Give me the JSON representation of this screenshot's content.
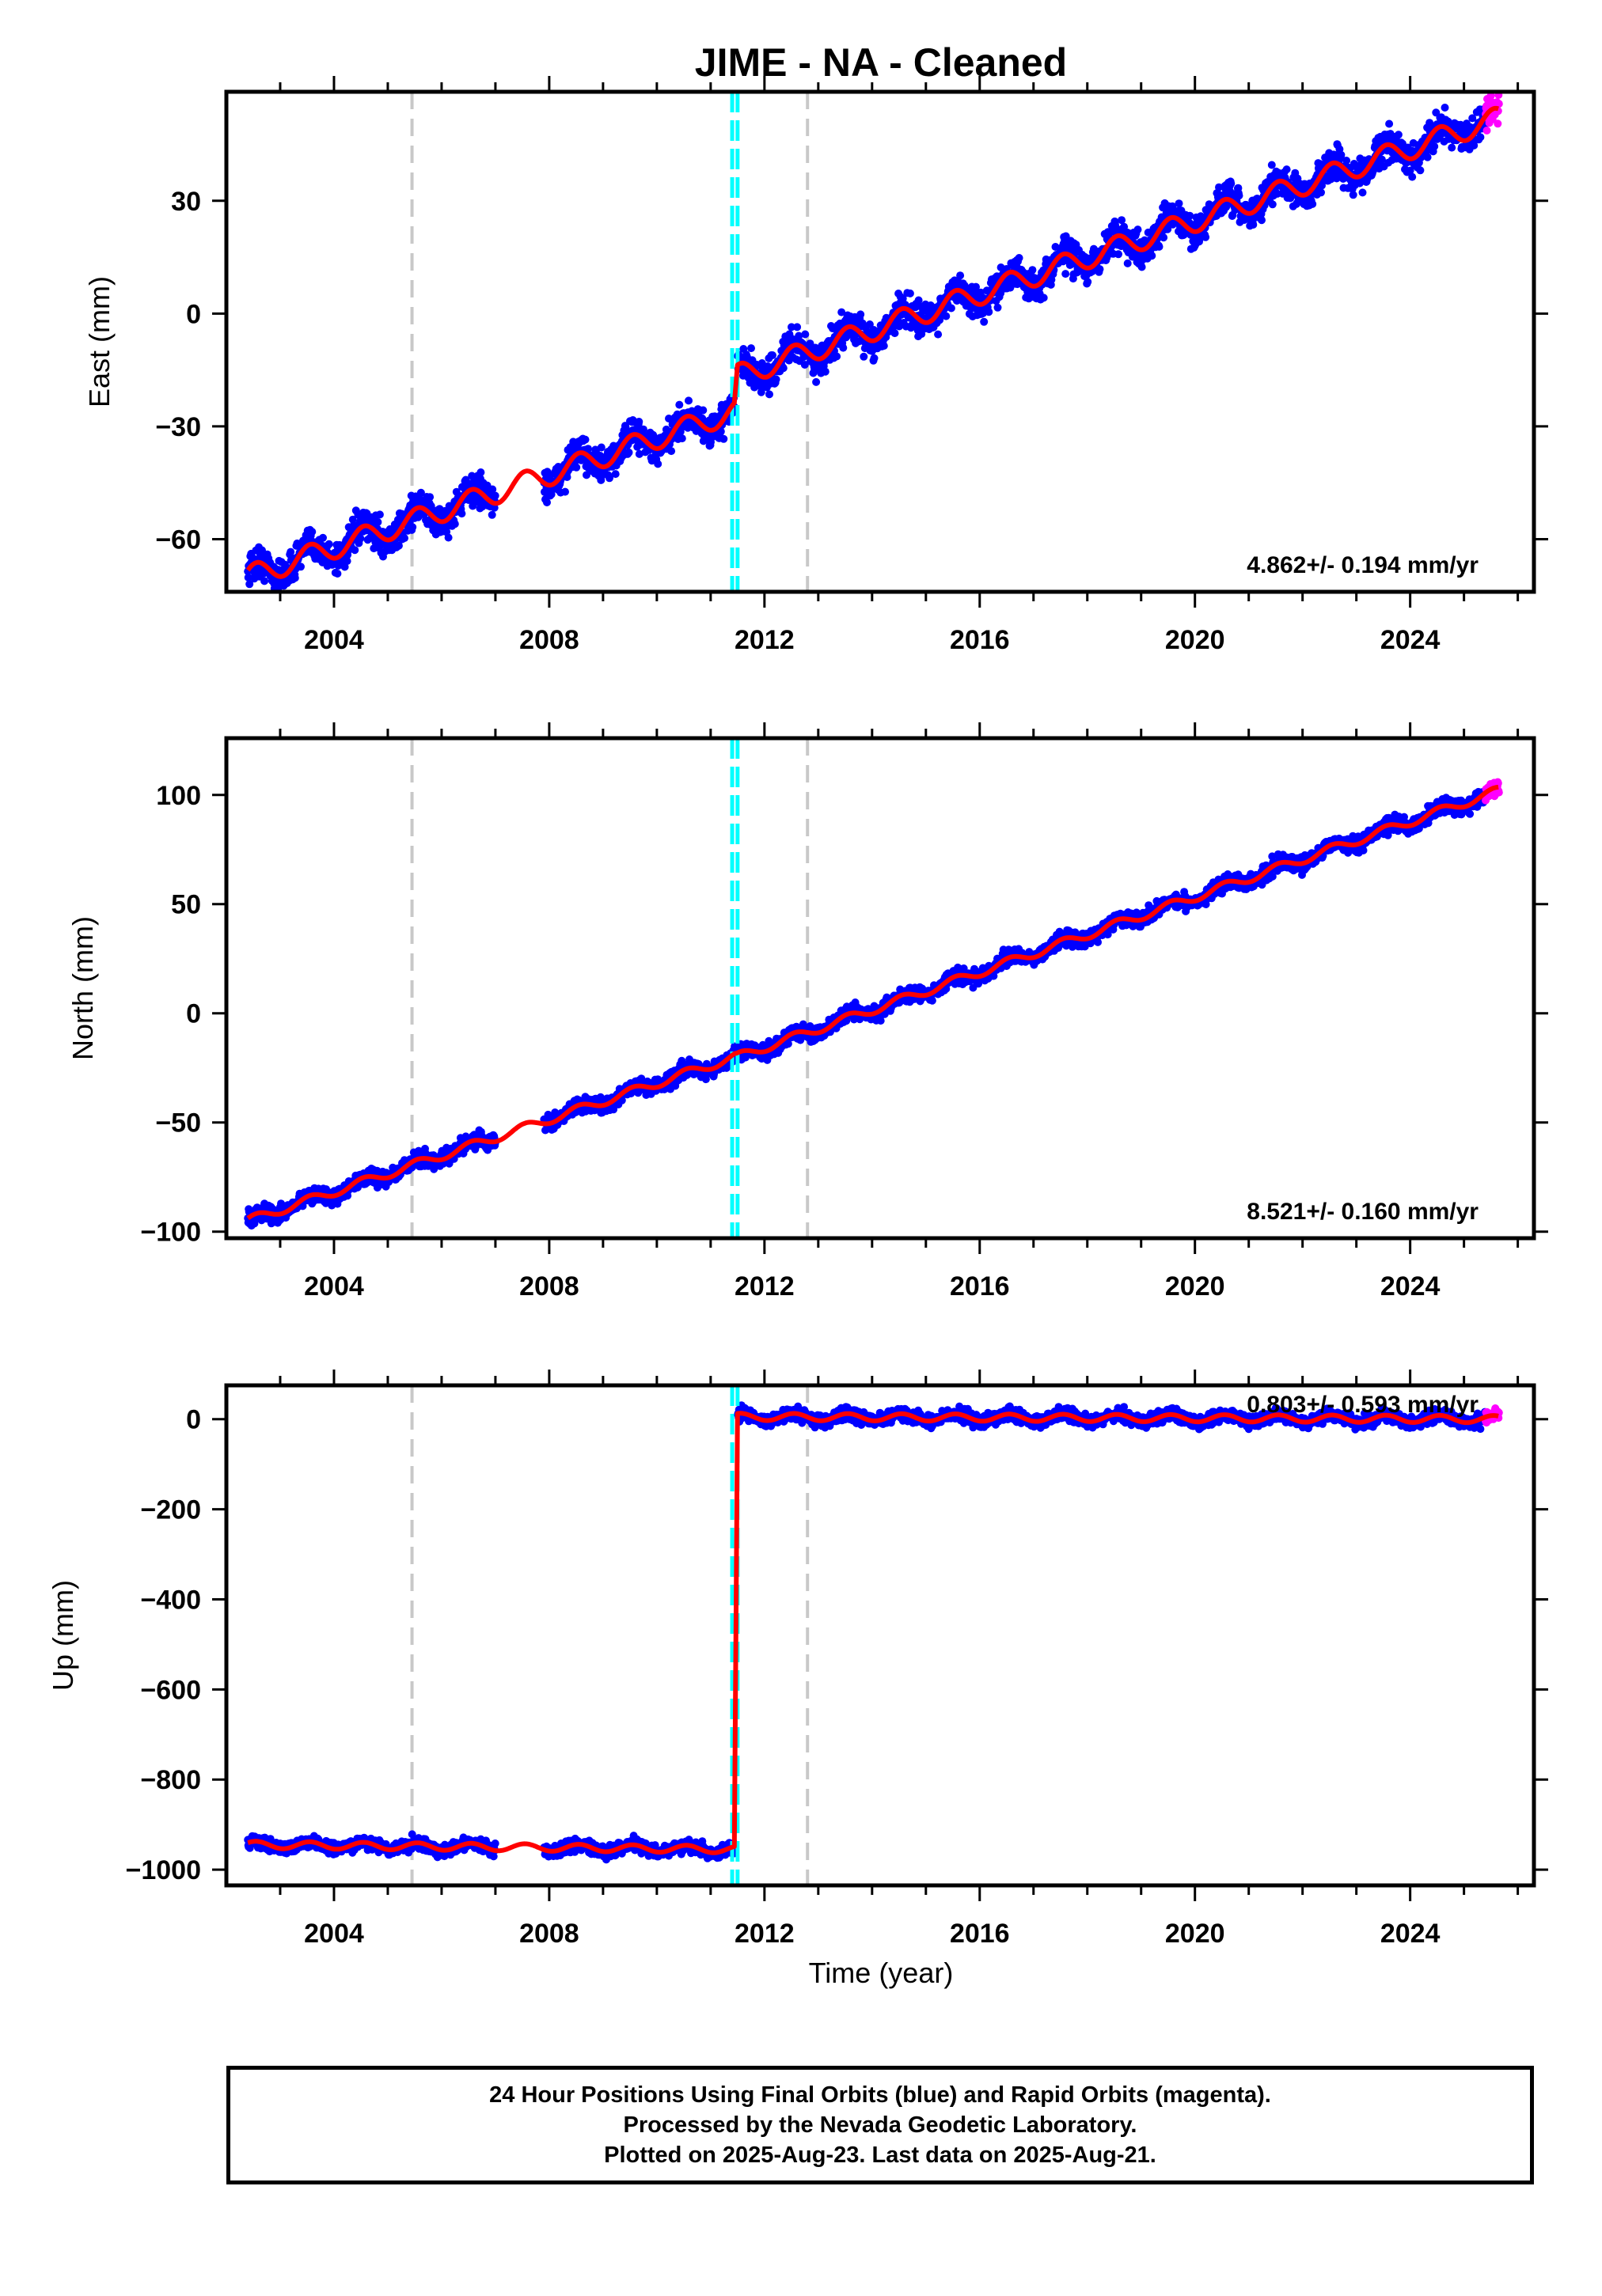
{
  "title": "JIME  - NA - Cleaned",
  "xlabel": "Time (year)",
  "footer": {
    "line1": "24 Hour Positions Using Final Orbits (blue) and Rapid Orbits (magenta).",
    "line2": "Processed by the Nevada Geodetic Laboratory.",
    "line3": "Plotted on 2025-Aug-23. Last data on 2025-Aug-21."
  },
  "colors": {
    "final_orbits": "#0000ff",
    "rapid_orbits": "#ff00ff",
    "model_fit": "#ff0000",
    "equipment_change": "#00ffff",
    "earthquake_marker": "#c8c8c8"
  },
  "chart_data": [
    {
      "type": "scatter",
      "ylabel": "East (mm)",
      "rate_label": "4.862+/- 0.194 mm/yr",
      "xlim": [
        2002.0,
        2026.3
      ],
      "ylim": [
        -74,
        59
      ],
      "xticks": [
        2004,
        2008,
        2012,
        2016,
        2020,
        2024
      ],
      "yticks": [
        -60,
        -30,
        0,
        30
      ],
      "ytick_labels": [
        "−60",
        "−30",
        "0",
        "30"
      ],
      "grey_dashed_lines": [
        2005.45,
        2012.8
      ],
      "cyan_dashed_lines": [
        2011.4,
        2011.5
      ],
      "step": {
        "at": 2011.5,
        "size": 16
      },
      "fit_segments": [
        {
          "x": [
            2002.4,
            2011.45
          ],
          "y": [
            -70.0,
            -26.0
          ]
        },
        {
          "x": [
            2011.5,
            2025.65
          ],
          "y": [
            -16.5,
            52.0
          ]
        }
      ],
      "seasonal_amplitude": 3,
      "scatter": 3,
      "rapid_orbits_range": [
        2025.4,
        2025.65
      ]
    },
    {
      "type": "scatter",
      "ylabel": "North (mm)",
      "rate_label": "8.521+/- 0.160 mm/yr",
      "xlim": [
        2002.0,
        2026.3
      ],
      "ylim": [
        -103,
        126
      ],
      "xticks": [
        2004,
        2008,
        2012,
        2016,
        2020,
        2024
      ],
      "yticks": [
        -100,
        -50,
        0,
        50,
        100
      ],
      "ytick_labels": [
        "−100",
        "−50",
        "0",
        "50",
        "100"
      ],
      "grey_dashed_lines": [
        2005.45,
        2012.8
      ],
      "cyan_dashed_lines": [
        2011.4,
        2011.5
      ],
      "step": {
        "at": 2011.5,
        "size": 0
      },
      "fit_segments": [
        {
          "x": [
            2002.4,
            2011.45
          ],
          "y": [
            -95.0,
            -20.0
          ]
        },
        {
          "x": [
            2011.5,
            2025.65
          ],
          "y": [
            -20.0,
            102.0
          ]
        }
      ],
      "seasonal_amplitude": 2,
      "scatter": 2.5,
      "rapid_orbits_range": [
        2025.4,
        2025.65
      ]
    },
    {
      "type": "scatter",
      "ylabel": "Up (mm)",
      "rate_label": "0.803+/- 0.593 mm/yr",
      "xlim": [
        2002.0,
        2026.3
      ],
      "ylim": [
        -1035,
        75
      ],
      "xticks": [
        2004,
        2008,
        2012,
        2016,
        2020,
        2024
      ],
      "yticks": [
        -1000,
        -800,
        -600,
        -400,
        -200,
        0
      ],
      "ytick_labels": [
        "−1000",
        "−800",
        "−600",
        "−400",
        "−200",
        "0"
      ],
      "grey_dashed_lines": [
        2005.45,
        2012.8
      ],
      "cyan_dashed_lines": [
        2011.4,
        2011.5
      ],
      "step": {
        "at": 2011.5,
        "size": 965
      },
      "fit_segments": [
        {
          "x": [
            2002.4,
            2011.45
          ],
          "y": [
            -945.0,
            -955.0
          ]
        },
        {
          "x": [
            2011.5,
            2025.65
          ],
          "y": [
            5.0,
            0.0
          ]
        }
      ],
      "seasonal_amplitude": 8,
      "scatter": 10,
      "rapid_orbits_range": [
        2025.4,
        2025.65
      ]
    }
  ]
}
